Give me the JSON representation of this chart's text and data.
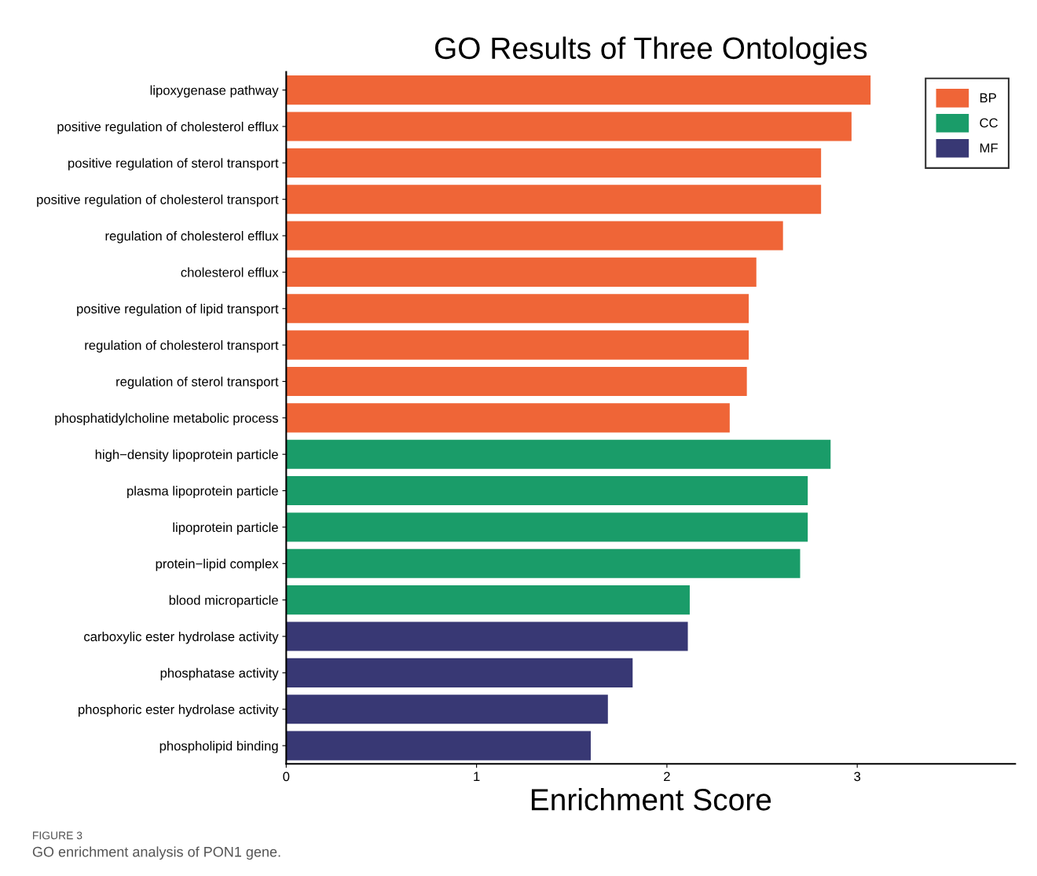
{
  "chart_data": {
    "type": "bar",
    "orientation": "horizontal",
    "title": "GO Results of Three Ontologies",
    "xlabel": "Enrichment Score",
    "categories": [
      "lipoxygenase pathway",
      "positive regulation of cholesterol efflux",
      "positive regulation of sterol transport",
      "positive regulation of cholesterol transport",
      "regulation of cholesterol efflux",
      "cholesterol efflux",
      "positive regulation of lipid transport",
      "regulation of cholesterol transport",
      "regulation of sterol transport",
      "phosphatidylcholine metabolic process",
      "high−density lipoprotein particle",
      "plasma lipoprotein particle",
      "lipoprotein particle",
      "protein−lipid complex",
      "blood microparticle",
      "carboxylic ester hydrolase activity",
      "phosphatase activity",
      "phosphoric ester hydrolase activity",
      "phospholipid binding"
    ],
    "series": [
      {
        "name": "BP",
        "color": "#ef6537",
        "values": [
          3.07,
          2.97,
          2.81,
          2.81,
          2.61,
          2.47,
          2.43,
          2.43,
          2.42,
          2.33,
          null,
          null,
          null,
          null,
          null,
          null,
          null,
          null,
          null
        ]
      },
      {
        "name": "CC",
        "color": "#1a9c69",
        "values": [
          null,
          null,
          null,
          null,
          null,
          null,
          null,
          null,
          null,
          null,
          2.86,
          2.74,
          2.74,
          2.7,
          2.12,
          null,
          null,
          null,
          null
        ]
      },
      {
        "name": "MF",
        "color": "#383874",
        "values": [
          null,
          null,
          null,
          null,
          null,
          null,
          null,
          null,
          null,
          null,
          null,
          null,
          null,
          null,
          null,
          2.11,
          1.82,
          1.69,
          1.6
        ]
      }
    ],
    "xlim": [
      0,
      3.83
    ],
    "xticks": [
      0,
      1,
      2,
      3
    ],
    "grid": false,
    "legend": "top right",
    "annotations": [
      "FIGURE 3",
      "GO enrichment analysis of PON1 gene."
    ]
  }
}
